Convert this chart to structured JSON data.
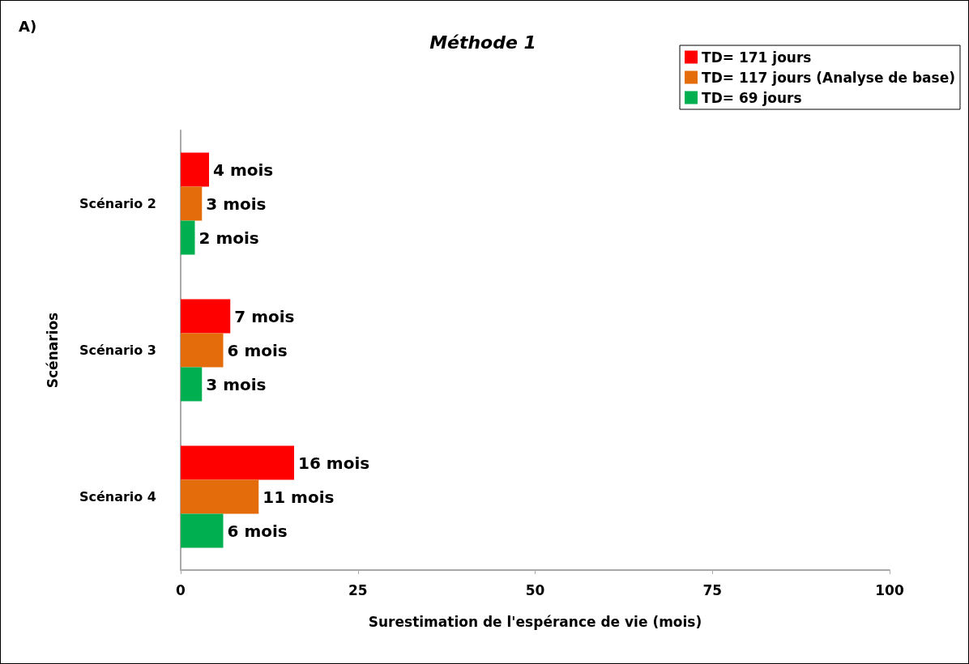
{
  "chart_data": {
    "type": "bar",
    "orientation": "horizontal",
    "title": "Méthode 1",
    "xlabel": "Surestimation de l'espérance de vie (mois)",
    "ylabel": "Scénarios",
    "annotations": [
      "A)"
    ],
    "categories": [
      "Scénario 2",
      "Scénario 3",
      "Scénario 4"
    ],
    "series": [
      {
        "name": "TD= 171 jours",
        "color": "#ff0000",
        "values": [
          4,
          7,
          16
        ],
        "value_labels": [
          "4 mois",
          "7 mois",
          "16 mois"
        ]
      },
      {
        "name": "TD= 117 jours (Analyse de base)",
        "color": "#e46c0a",
        "values": [
          3,
          6,
          11
        ],
        "value_labels": [
          "3 mois",
          "6 mois",
          "11 mois"
        ]
      },
      {
        "name": "TD= 69 jours",
        "color": "#00b050",
        "values": [
          2,
          3,
          6
        ],
        "value_labels": [
          "2 mois",
          "3 mois",
          "6 mois"
        ]
      }
    ],
    "xlim": [
      0,
      100
    ],
    "xticks": [
      0,
      25,
      50,
      75,
      100
    ],
    "grid": false,
    "legend": "top right"
  }
}
